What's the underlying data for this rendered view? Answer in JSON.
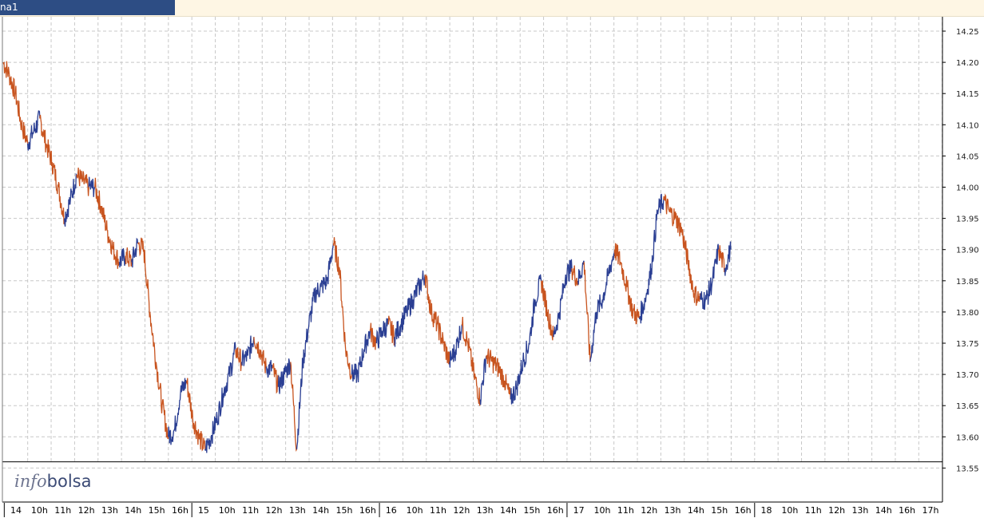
{
  "tab": {
    "label": "na1"
  },
  "logo": {
    "part1": "info",
    "part2": "bolsa"
  },
  "colors": {
    "up": "#2b3f93",
    "down": "#c8541f",
    "grid": "#c8c8c8",
    "tab_active": "#2d4d84",
    "tab_bar": "#fef6e4"
  },
  "chart_data": {
    "type": "line",
    "title": "",
    "ylim": [
      13.525,
      14.28
    ],
    "grid": true,
    "y_ticks": [
      "14.25",
      "14.20",
      "14.15",
      "14.10",
      "14.05",
      "14.00",
      "13.95",
      "13.90",
      "13.85",
      "13.80",
      "13.75",
      "13.70",
      "13.65",
      "13.60",
      "13.55"
    ],
    "x_ticks": [
      "14",
      "10h",
      "11h",
      "12h",
      "13h",
      "14h",
      "15h",
      "16h",
      "15",
      "10h",
      "11h",
      "12h",
      "13h",
      "14h",
      "15h",
      "16h",
      "16",
      "10h",
      "11h",
      "12h",
      "13h",
      "14h",
      "15h",
      "16h",
      "17",
      "10h",
      "11h",
      "12h",
      "13h",
      "14h",
      "15h",
      "16h",
      "18",
      "10h",
      "11h",
      "12h",
      "13h",
      "14h",
      "16h",
      "17h"
    ],
    "day_separators": [
      "14",
      "15",
      "16",
      "17",
      "18"
    ],
    "reference_line": 13.56,
    "series": [
      {
        "values": [
          14.2,
          14.18,
          14.15,
          14.1,
          14.07,
          14.09,
          14.11,
          14.07,
          14.04,
          14.0,
          13.95,
          13.98,
          14.02,
          14.01,
          14.0,
          14.0,
          13.97,
          13.93,
          13.9,
          13.88,
          13.89,
          13.88,
          13.91,
          13.9,
          13.8,
          13.72,
          13.65,
          13.6,
          13.61,
          13.67,
          13.69,
          13.63,
          13.6,
          13.58,
          13.6,
          13.63,
          13.67,
          13.7,
          13.74,
          13.72,
          13.73,
          13.76,
          13.74,
          13.71,
          13.71,
          13.68,
          13.7,
          13.72,
          13.58,
          13.72,
          13.78,
          13.83,
          13.84,
          13.85,
          13.91,
          13.87,
          13.74,
          13.7,
          13.7,
          13.74,
          13.77,
          13.75,
          13.77,
          13.78,
          13.76,
          13.78,
          13.8,
          13.82,
          13.84,
          13.86,
          13.8,
          13.78,
          13.75,
          13.72,
          13.74,
          13.78,
          13.75,
          13.7,
          13.66,
          13.73,
          13.72,
          13.71,
          13.69,
          13.66,
          13.68,
          13.72,
          13.75,
          13.82,
          13.85,
          13.8,
          13.76,
          13.8,
          13.86,
          13.87,
          13.85,
          13.88,
          13.72,
          13.8,
          13.82,
          13.86,
          13.9,
          13.88,
          13.84,
          13.8,
          13.79,
          13.82,
          13.87,
          13.96,
          13.98,
          13.96,
          13.95,
          13.93,
          13.88,
          13.83,
          13.82,
          13.82,
          13.85,
          13.9,
          13.87,
          13.9
        ]
      }
    ]
  }
}
